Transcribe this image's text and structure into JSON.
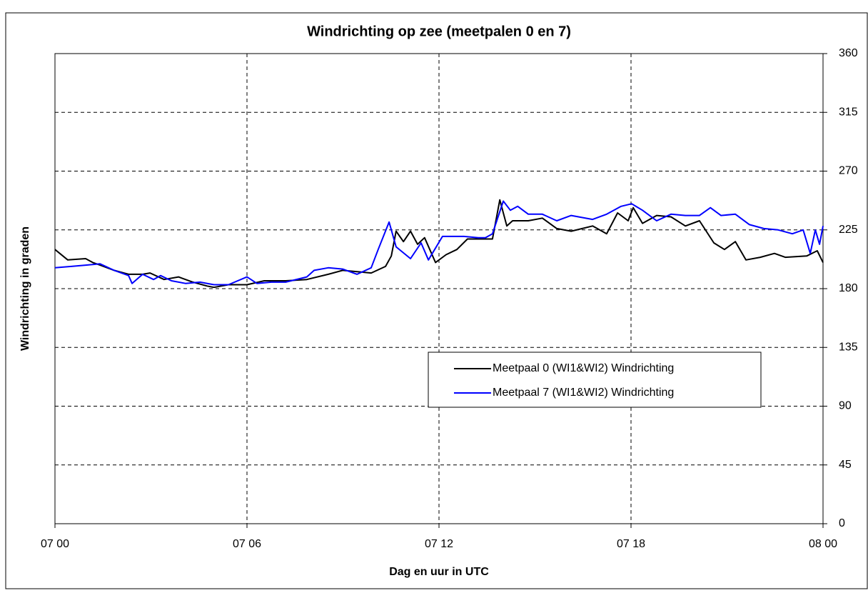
{
  "chart_data": {
    "type": "line",
    "title": "Windrichting op zee (meetpalen 0 en 7)",
    "x_label": "Dag en uur in UTC",
    "y_label": "Windrichting in graden",
    "xlim": [
      0,
      24
    ],
    "xticks": [
      {
        "value": 0,
        "label": "07 00"
      },
      {
        "value": 6,
        "label": "07 06"
      },
      {
        "value": 12,
        "label": "07 12"
      },
      {
        "value": 18,
        "label": "07 18"
      },
      {
        "value": 24,
        "label": "08 00"
      }
    ],
    "ylim": [
      0,
      360
    ],
    "yticks": [
      0,
      45,
      90,
      135,
      180,
      225,
      270,
      315,
      360
    ],
    "y_axis_side": "right",
    "grid": true,
    "legend": "center-right",
    "series": [
      {
        "name": "Meetpaal 0 (WI1&WI2) Windrichting",
        "color": "#000000",
        "x": [
          0,
          0.4,
          0.96,
          1.18,
          1.41,
          1.85,
          2.3,
          2.74,
          2.97,
          3.41,
          3.86,
          4.31,
          4.75,
          4.97,
          5.42,
          6,
          6.54,
          7.21,
          7.87,
          8.54,
          8.99,
          9.44,
          9.88,
          10.33,
          10.51,
          10.66,
          10.89,
          11.11,
          11.33,
          11.55,
          11.89,
          12.22,
          12.56,
          12.89,
          13.23,
          13.67,
          13.9,
          14.12,
          14.3,
          14.79,
          15.23,
          15.68,
          16.13,
          16.8,
          17.24,
          17.58,
          17.91,
          18.07,
          18.36,
          18.8,
          19.25,
          19.7,
          20.14,
          20.59,
          20.92,
          21.26,
          21.59,
          22.04,
          22.48,
          22.82,
          23.49,
          23.82,
          24
        ],
        "values": [
          210,
          202,
          203,
          200,
          198,
          194,
          191,
          191,
          192,
          187,
          189,
          185,
          182,
          181,
          183,
          183,
          186,
          186,
          187,
          191,
          194,
          193,
          192,
          197,
          205,
          224,
          216,
          224,
          214,
          219,
          200,
          206,
          210,
          218,
          218,
          218,
          248,
          228,
          232,
          232,
          234,
          226,
          224,
          228,
          222,
          238,
          232,
          242,
          230,
          236,
          235,
          228,
          232,
          215,
          210,
          216,
          202,
          204,
          207,
          204,
          205,
          209,
          200
        ]
      },
      {
        "name": "Meetpaal 7 (WI1&WI2) Windrichting",
        "color": "#0000ff",
        "x": [
          0,
          0.51,
          0.96,
          1.41,
          1.85,
          2.3,
          2.41,
          2.74,
          3.08,
          3.3,
          3.64,
          4.08,
          4.53,
          4.97,
          5.42,
          6,
          6.31,
          6.76,
          7.21,
          7.87,
          8.1,
          8.54,
          8.99,
          9.21,
          9.44,
          9.88,
          10.1,
          10.44,
          10.66,
          11.11,
          11.44,
          11.67,
          12.11,
          12.78,
          13.23,
          13.45,
          13.67,
          14.01,
          14.23,
          14.46,
          14.79,
          15.23,
          15.68,
          16.13,
          16.8,
          17.24,
          17.69,
          18.02,
          18.36,
          18.8,
          19.25,
          19.7,
          20.14,
          20.48,
          20.81,
          21.26,
          21.7,
          22.15,
          22.6,
          23.04,
          23.38,
          23.6,
          23.76,
          23.89,
          24
        ],
        "values": [
          196,
          197,
          198,
          199,
          194,
          190,
          184,
          191,
          187,
          190,
          186,
          184,
          185,
          183,
          183,
          189,
          184,
          185,
          185,
          189,
          194,
          196,
          195,
          193,
          191,
          196,
          210,
          231,
          212,
          203,
          215,
          202,
          220,
          220,
          219,
          219,
          222,
          247,
          240,
          243,
          237,
          237,
          232,
          236,
          233,
          237,
          243,
          245,
          240,
          232,
          237,
          236,
          236,
          242,
          236,
          237,
          229,
          226,
          225,
          222,
          225,
          207,
          225,
          214,
          228
        ]
      }
    ]
  }
}
